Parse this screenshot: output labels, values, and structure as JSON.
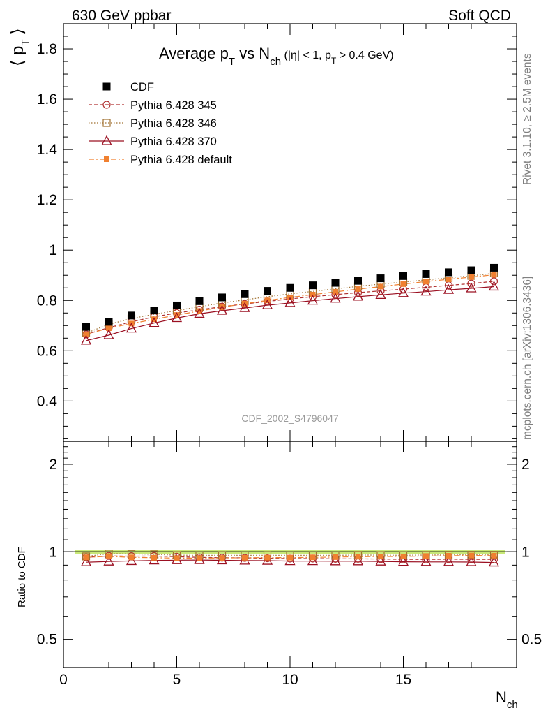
{
  "header": {
    "left": "630 GeV ppbar",
    "right": "Soft QCD"
  },
  "side_labels": {
    "rivet": "Rivet 3.1.10, ≥ 2.5M events",
    "mcplots": "mcplots.cern.ch [arXiv:1306.3436]"
  },
  "analysis_id": "CDF_2002_S4796047",
  "chart_data": [
    {
      "panel": "main",
      "type": "scatter",
      "title": {
        "main": "Average p",
        "sub1": "T",
        "mid": " vs N",
        "sub2": "ch",
        "cut": " (|η| < 1, p",
        "sub3": "T",
        "cut_end": " > 0.4 GeV)"
      },
      "ylabel": {
        "open": "⟨ p",
        "sub": "T",
        "close": " ⟩"
      },
      "xlim": [
        0,
        20
      ],
      "ylim": [
        0.24,
        1.9
      ],
      "yticks": [
        0.4,
        0.6,
        0.8,
        1,
        1.2,
        1.4,
        1.6,
        1.8
      ],
      "ytick_labels": [
        "0.4",
        "0.6",
        "0.8",
        "1",
        "1.2",
        "1.4",
        "1.6",
        "1.8"
      ],
      "x": [
        1,
        2,
        3,
        4,
        5,
        6,
        7,
        8,
        9,
        10,
        11,
        12,
        13,
        14,
        15,
        16,
        17,
        18,
        19
      ],
      "series": [
        {
          "name": "CDF",
          "color": "#000000",
          "marker": "filled-square",
          "line": "none",
          "values": [
            0.695,
            0.715,
            0.74,
            0.76,
            0.78,
            0.797,
            0.812,
            0.825,
            0.838,
            0.85,
            0.86,
            0.87,
            0.878,
            0.888,
            0.897,
            0.905,
            0.912,
            0.92,
            0.93
          ]
        },
        {
          "name": "Pythia 6.428 345",
          "color": "#b03030",
          "marker": "open-circle",
          "line": "dashed",
          "values": [
            0.665,
            0.692,
            0.715,
            0.735,
            0.75,
            0.763,
            0.775,
            0.786,
            0.796,
            0.806,
            0.815,
            0.823,
            0.831,
            0.838,
            0.845,
            0.852,
            0.86,
            0.867,
            0.876
          ]
        },
        {
          "name": "Pythia 6.428 346",
          "color": "#a07030",
          "marker": "open-square",
          "line": "dotted",
          "values": [
            0.67,
            0.705,
            0.728,
            0.745,
            0.76,
            0.775,
            0.79,
            0.802,
            0.815,
            0.826,
            0.836,
            0.846,
            0.856,
            0.865,
            0.873,
            0.882,
            0.89,
            0.898,
            0.908
          ]
        },
        {
          "name": "Pythia 6.428 370",
          "color": "#9b1022",
          "marker": "open-triangle",
          "line": "solid",
          "values": [
            0.64,
            0.662,
            0.688,
            0.71,
            0.73,
            0.747,
            0.759,
            0.77,
            0.781,
            0.79,
            0.799,
            0.807,
            0.815,
            0.822,
            0.829,
            0.835,
            0.842,
            0.848,
            0.855
          ]
        },
        {
          "name": "Pythia 6.428 default",
          "color": "#f08030",
          "marker": "small-filled-square",
          "line": "dashdot",
          "values": [
            0.665,
            0.69,
            0.708,
            0.725,
            0.742,
            0.758,
            0.773,
            0.787,
            0.8,
            0.812,
            0.823,
            0.834,
            0.845,
            0.855,
            0.865,
            0.875,
            0.884,
            0.893,
            0.902
          ]
        }
      ],
      "legend_placement": "top-left"
    },
    {
      "panel": "ratio",
      "type": "scatter",
      "ylabel": "Ratio to CDF",
      "ylim": [
        0.4,
        2.4
      ],
      "yscale": "log",
      "yticks": [
        0.5,
        1,
        2
      ],
      "ytick_labels": [
        "0.5",
        "1",
        "2"
      ],
      "reference_band": {
        "low": 0.985,
        "high": 1.015,
        "color": "#c8e878",
        "line_color": "#000000"
      },
      "x": [
        1,
        2,
        3,
        4,
        5,
        6,
        7,
        8,
        9,
        10,
        11,
        12,
        13,
        14,
        15,
        16,
        17,
        18,
        19
      ],
      "series": [
        {
          "name": "Pythia 6.428 345",
          "values": [
            0.957,
            0.968,
            0.966,
            0.967,
            0.962,
            0.957,
            0.954,
            0.953,
            0.95,
            0.948,
            0.948,
            0.946,
            0.946,
            0.944,
            0.942,
            0.941,
            0.943,
            0.942,
            0.942
          ]
        },
        {
          "name": "Pythia 6.428 346",
          "values": [
            0.964,
            0.986,
            0.984,
            0.98,
            0.974,
            0.972,
            0.973,
            0.972,
            0.973,
            0.972,
            0.972,
            0.972,
            0.975,
            0.974,
            0.973,
            0.975,
            0.976,
            0.976,
            0.976
          ]
        },
        {
          "name": "Pythia 6.428 370",
          "values": [
            0.921,
            0.926,
            0.93,
            0.934,
            0.936,
            0.937,
            0.935,
            0.933,
            0.932,
            0.929,
            0.929,
            0.928,
            0.928,
            0.926,
            0.924,
            0.923,
            0.923,
            0.922,
            0.919
          ]
        },
        {
          "name": "Pythia 6.428 default",
          "values": [
            0.957,
            0.965,
            0.957,
            0.954,
            0.951,
            0.951,
            0.952,
            0.954,
            0.955,
            0.955,
            0.957,
            0.959,
            0.962,
            0.963,
            0.964,
            0.967,
            0.969,
            0.971,
            0.97
          ]
        }
      ]
    }
  ],
  "x_axis": {
    "label": "N",
    "label_sub": "ch",
    "ticks": [
      0,
      5,
      10,
      15
    ],
    "tick_labels": [
      "0",
      "5",
      "10",
      "15"
    ]
  }
}
